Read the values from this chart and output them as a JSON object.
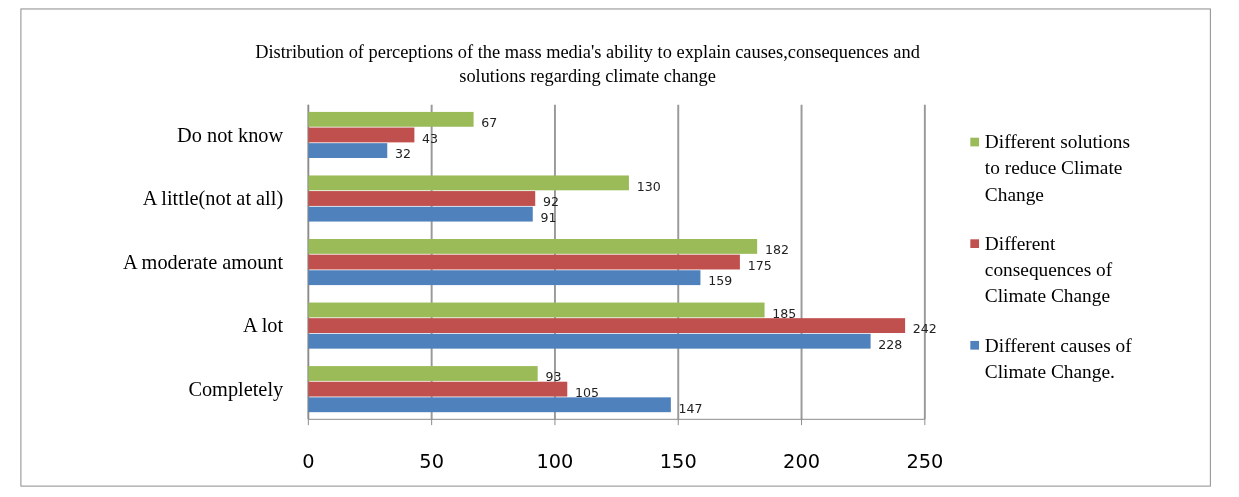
{
  "chart_data": {
    "type": "bar",
    "orientation": "horizontal",
    "title": "Distribution of perceptions of the mass media's ability to explain causes,consequences and solutions regarding  climate change",
    "categories": [
      "Do not know",
      "A little(not at all)",
      "A moderate amount",
      "A lot",
      "Completely"
    ],
    "series": [
      {
        "name": "Different solutions to reduce Climate Change",
        "color": "#9bbb59",
        "values": [
          67,
          130,
          182,
          185,
          93
        ]
      },
      {
        "name": "Different consequences of Climate Change",
        "color": "#c0504d",
        "values": [
          43,
          92,
          175,
          242,
          105
        ]
      },
      {
        "name": "Different causes of Climate Change.",
        "color": "#4f81bd",
        "values": [
          32,
          91,
          159,
          228,
          147
        ]
      }
    ],
    "xlim": [
      0,
      250
    ],
    "xticks": [
      0,
      50,
      100,
      150,
      200,
      250
    ],
    "grid": "x",
    "legend": "right",
    "data_labels": true
  }
}
